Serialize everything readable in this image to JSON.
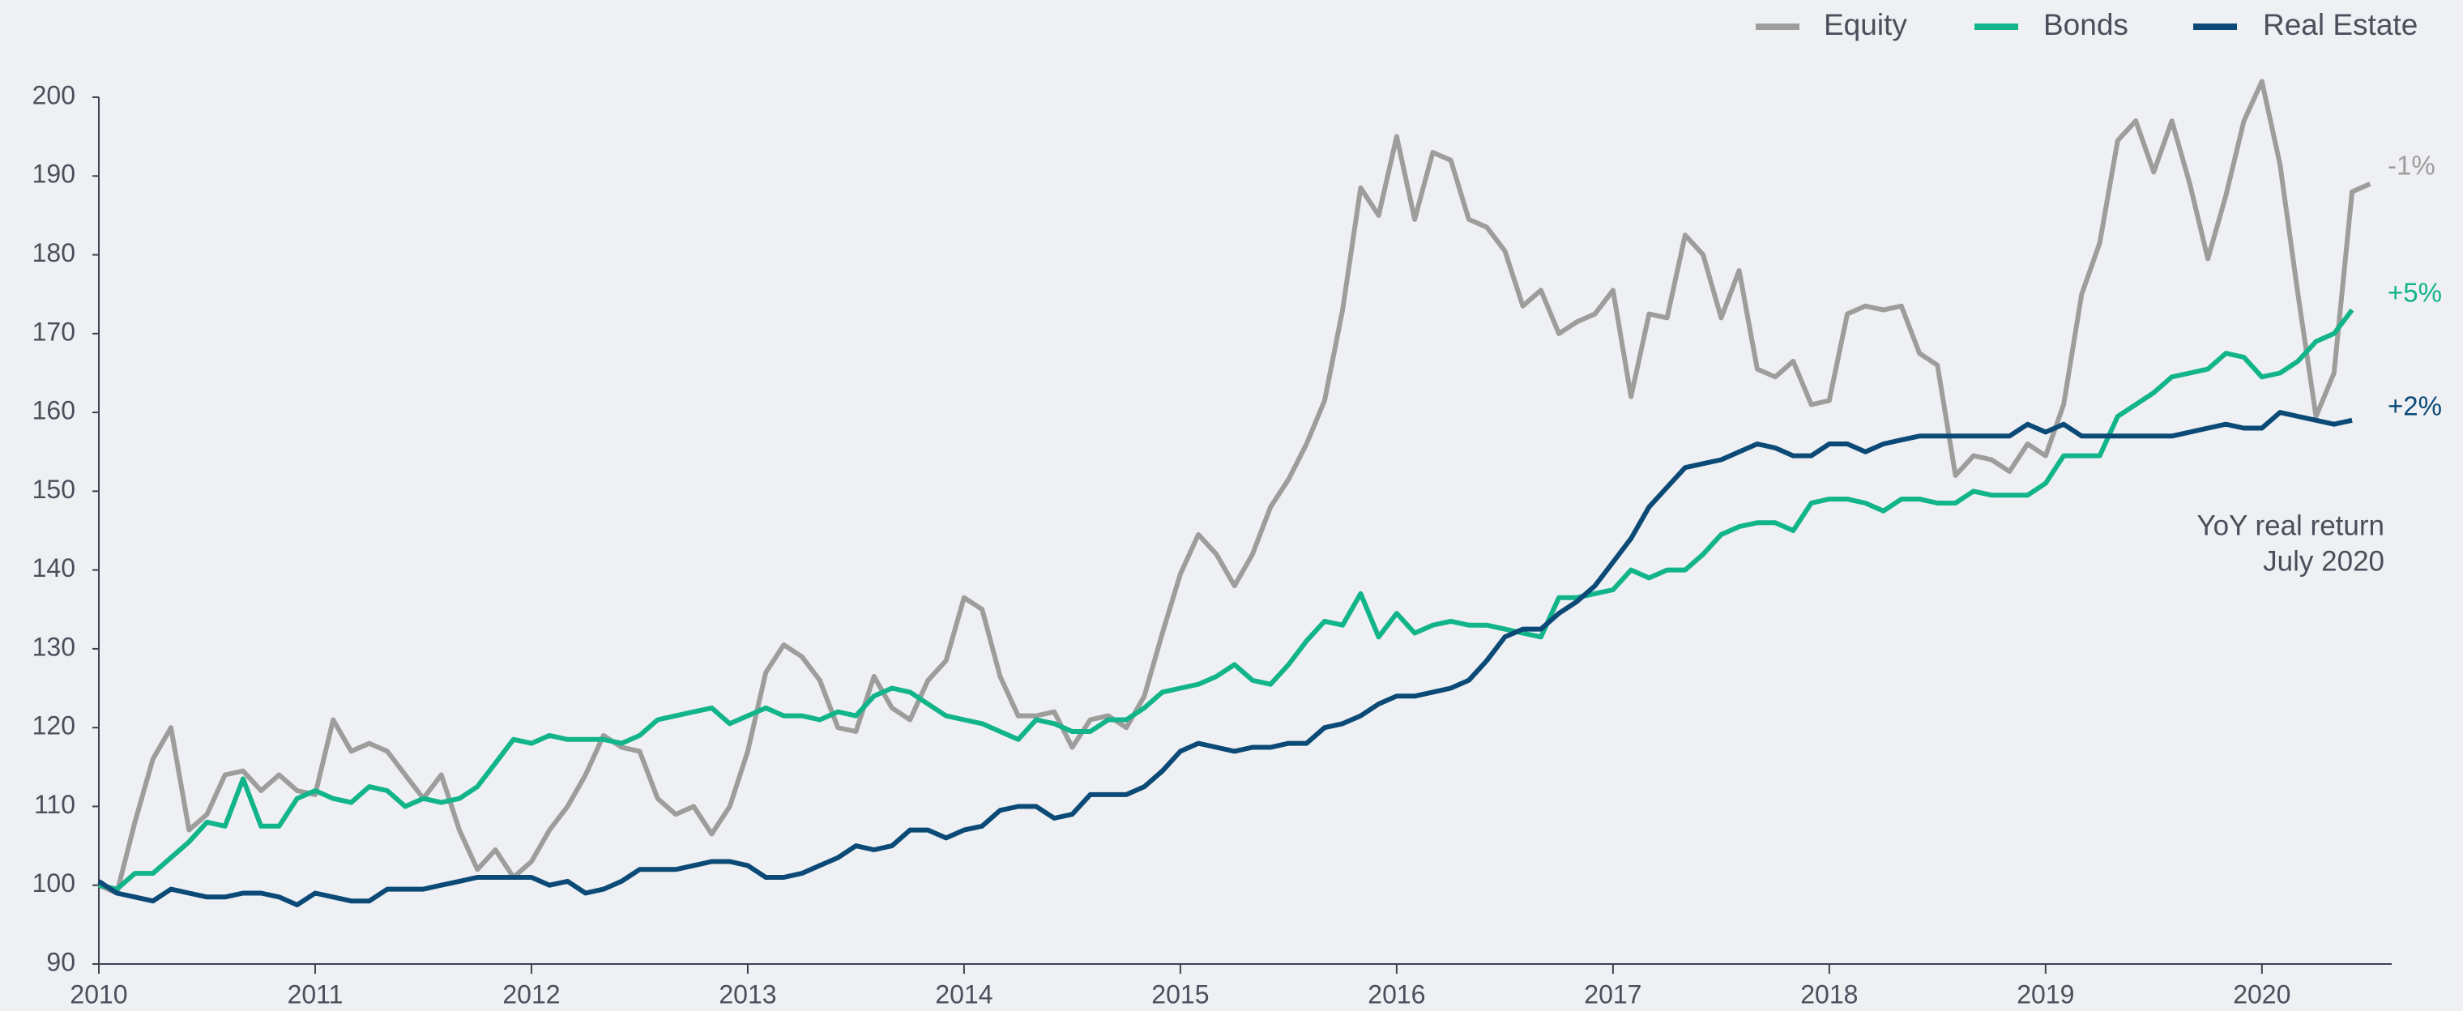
{
  "chart_data": {
    "type": "line",
    "x": [
      2010,
      2010.0833,
      2010.1667,
      2010.25,
      2010.3333,
      2010.4167,
      2010.5,
      2010.5833,
      2010.6667,
      2010.75,
      2010.8333,
      2010.9167,
      2011,
      2011.0833,
      2011.1667,
      2011.25,
      2011.3333,
      2011.4167,
      2011.5,
      2011.5833,
      2011.6667,
      2011.75,
      2011.8333,
      2011.9167,
      2012,
      2012.0833,
      2012.1667,
      2012.25,
      2012.3333,
      2012.4167,
      2012.5,
      2012.5833,
      2012.6667,
      2012.75,
      2012.8333,
      2012.9167,
      2013,
      2013.0833,
      2013.1667,
      2013.25,
      2013.3333,
      2013.4167,
      2013.5,
      2013.5833,
      2013.6667,
      2013.75,
      2013.8333,
      2013.9167,
      2014,
      2014.0833,
      2014.1667,
      2014.25,
      2014.3333,
      2014.4167,
      2014.5,
      2014.5833,
      2014.6667,
      2014.75,
      2014.8333,
      2014.9167,
      2015,
      2015.0833,
      2015.1667,
      2015.25,
      2015.3333,
      2015.4167,
      2015.5,
      2015.5833,
      2015.6667,
      2015.75,
      2015.8333,
      2015.9167,
      2016,
      2016.0833,
      2016.1667,
      2016.25,
      2016.3333,
      2016.4167,
      2016.5,
      2016.5833,
      2016.6667,
      2016.75,
      2016.8333,
      2016.9167,
      2017,
      2017.0833,
      2017.1667,
      2017.25,
      2017.3333,
      2017.4167,
      2017.5,
      2017.5833,
      2017.6667,
      2017.75,
      2017.8333,
      2017.9167,
      2018,
      2018.0833,
      2018.1667,
      2018.25,
      2018.3333,
      2018.4167,
      2018.5,
      2018.5833,
      2018.6667,
      2018.75,
      2018.8333,
      2018.9167,
      2019,
      2019.0833,
      2019.1667,
      2019.25,
      2019.3333,
      2019.4167,
      2019.5,
      2019.5833,
      2019.6667,
      2019.75,
      2019.8333,
      2019.9167,
      2020,
      2020.0833,
      2020.1667,
      2020.25,
      2020.3333,
      2020.4167,
      2020.5
    ],
    "series": [
      {
        "name": "Equity",
        "color": "#9d9d9b",
        "end_label": "-1%",
        "values": [
          100,
          99,
          108,
          116,
          120,
          107,
          109,
          114,
          114.5,
          112,
          114,
          112,
          111.5,
          121,
          117,
          118,
          117,
          114,
          111,
          114,
          107,
          102,
          104.5,
          101,
          103,
          107,
          110,
          114,
          119,
          117.5,
          117,
          111,
          109,
          110,
          106.5,
          110,
          117,
          127,
          130.5,
          129,
          126,
          120,
          119.5,
          126.5,
          122.5,
          121,
          126,
          128.5,
          136.5,
          135,
          126.5,
          121.5,
          121.5,
          122,
          117.5,
          121,
          121.5,
          120,
          124,
          132,
          139.5,
          144.5,
          142,
          138,
          142,
          148,
          151.5,
          156,
          161.5,
          173,
          188.5,
          185,
          195,
          184.5,
          193,
          192,
          184.5,
          183.5,
          180.5,
          173.5,
          175.5,
          170,
          171.5,
          172.5,
          175.5,
          162,
          172.5,
          172,
          182.5,
          180,
          172,
          178,
          165.5,
          164.5,
          166.5,
          161,
          161.5,
          172.5,
          173.5,
          173,
          173.5,
          167.5,
          166,
          152,
          154.5,
          154,
          152.5,
          156,
          154.5,
          161,
          175,
          181.5,
          194.5,
          197,
          190.5,
          197,
          189,
          179.5,
          187.5,
          197,
          202,
          191.5,
          175,
          159.5,
          165,
          188,
          189
        ]
      },
      {
        "name": "Bonds",
        "color": "#12b48a",
        "end_label": "+5%",
        "values": [
          100,
          99.5,
          101.5,
          101.5,
          103.5,
          105.5,
          108,
          107.5,
          113.5,
          107.5,
          107.5,
          111,
          112,
          111,
          110.5,
          112.5,
          112,
          110,
          111,
          110.5,
          111,
          112.5,
          115.5,
          118.5,
          118,
          119,
          118.5,
          118.5,
          118.5,
          118,
          119,
          121,
          121.5,
          122,
          122.5,
          120.5,
          121.5,
          122.5,
          121.5,
          121.5,
          121,
          122,
          121.5,
          124,
          125,
          124.5,
          123,
          121.5,
          121,
          120.5,
          119.5,
          118.5,
          121,
          120.5,
          119.5,
          119.5,
          121,
          121,
          122.5,
          124.5,
          125,
          125.5,
          126.5,
          128,
          126,
          125.5,
          128,
          131,
          133.5,
          133,
          137,
          131.5,
          134.5,
          132,
          133,
          133.5,
          133,
          133,
          132.5,
          132,
          131.5,
          136.5,
          136.5,
          137,
          137.5,
          140,
          139,
          140,
          140,
          142,
          144.5,
          145.5,
          146,
          146,
          145,
          148.5,
          149,
          149,
          148.5,
          147.5,
          149,
          149,
          148.5,
          148.5,
          150,
          149.5,
          149.5,
          149.5,
          151,
          154.5,
          154.5,
          154.5,
          159.5,
          161,
          162.5,
          164.5,
          165,
          165.5,
          167.5,
          167,
          164.5,
          165,
          166.5,
          169,
          170,
          173,
          null
        ]
      },
      {
        "name": "Real Estate",
        "color": "#0b4a76",
        "end_label": "+2%",
        "values": [
          100.5,
          99,
          98.5,
          98,
          99.5,
          99,
          98.5,
          98.5,
          99,
          99,
          98.5,
          97.5,
          99,
          98.5,
          98,
          98,
          99.5,
          99.5,
          99.5,
          100,
          100.5,
          101,
          101,
          101,
          101,
          100,
          100.5,
          99,
          99.5,
          100.5,
          102,
          102,
          102,
          102.5,
          103,
          103,
          102.5,
          101,
          101,
          101.5,
          102.5,
          103.5,
          105,
          104.5,
          105,
          107,
          107,
          106,
          107,
          107.5,
          109.5,
          110,
          110,
          108.5,
          109,
          111.5,
          111.5,
          111.5,
          112.5,
          114.5,
          117,
          118,
          117.5,
          117,
          117.5,
          117.5,
          118,
          118,
          120,
          120.5,
          121.5,
          123,
          124,
          124,
          124.5,
          125,
          126,
          128.5,
          131.5,
          132.5,
          132.5,
          134.5,
          136,
          138,
          141,
          144,
          148,
          150.5,
          153,
          153.5,
          154,
          155,
          156,
          155.5,
          154.5,
          154.5,
          156,
          156,
          155,
          156,
          156.5,
          157,
          157,
          157,
          157,
          157,
          157,
          158.5,
          157.5,
          158.5,
          157,
          157,
          157,
          157,
          157,
          157,
          157.5,
          158,
          158.5,
          158,
          158,
          160,
          159.5,
          159,
          158.5,
          159,
          null
        ]
      }
    ],
    "annotation": [
      "YoY real return",
      "July 2020"
    ],
    "xlim": [
      2010,
      2020.6
    ],
    "xticks": [
      2010,
      2011,
      2012,
      2013,
      2014,
      2015,
      2016,
      2017,
      2018,
      2019,
      2020
    ],
    "ylim": [
      90,
      200
    ],
    "yticks": [
      90,
      100,
      110,
      120,
      130,
      140,
      150,
      160,
      170,
      180,
      190,
      200
    ],
    "grid": false,
    "legend": "top-right"
  }
}
